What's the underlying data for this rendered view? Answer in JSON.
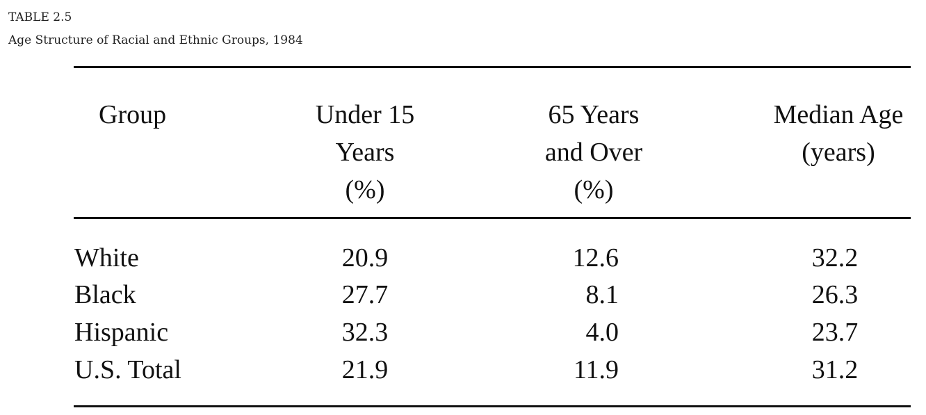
{
  "table": {
    "label": "TABLE 2.5",
    "title": "Age Structure of Racial and Ethnic Groups, 1984",
    "headers": {
      "group": [
        "Group"
      ],
      "under15": [
        "Under 15",
        "Years",
        "(%)"
      ],
      "over65": [
        "65 Years",
        "and Over",
        "(%)"
      ],
      "median": [
        "Median Age",
        "(years)"
      ]
    },
    "rows": [
      {
        "group": "White",
        "under15": "20.9",
        "over65": "12.6",
        "median": "32.2"
      },
      {
        "group": "Black",
        "under15": "27.7",
        "over65": "8.1",
        "median": "26.3"
      },
      {
        "group": "Hispanic",
        "under15": "32.3",
        "over65": "4.0",
        "median": "23.7"
      },
      {
        "group": "U.S. Total",
        "under15": "21.9",
        "over65": "11.9",
        "median": "31.2"
      }
    ]
  }
}
